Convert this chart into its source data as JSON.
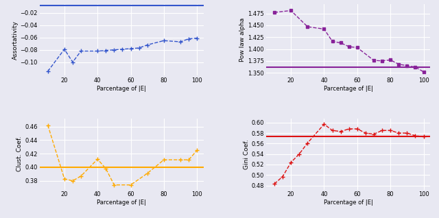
{
  "assort_x": [
    10,
    20,
    25,
    30,
    40,
    45,
    50,
    55,
    60,
    65,
    70,
    80,
    90,
    95,
    100
  ],
  "assort_y": [
    -0.115,
    -0.079,
    -0.1,
    -0.082,
    -0.082,
    -0.081,
    -0.08,
    -0.079,
    -0.078,
    -0.077,
    -0.072,
    -0.065,
    -0.067,
    -0.062,
    -0.061
  ],
  "assort_hline": -0.008,
  "assort_color": "#3355cc",
  "assort_ylim": [
    -0.122,
    -0.006
  ],
  "assort_yticks": [
    -0.1,
    -0.08,
    -0.06,
    -0.04,
    -0.02
  ],
  "assort_ylabel": "Assortativity",
  "power_x": [
    10,
    20,
    30,
    40,
    45,
    50,
    55,
    60,
    70,
    75,
    80,
    85,
    90,
    95,
    100
  ],
  "power_y": [
    1.477,
    1.481,
    1.447,
    1.442,
    1.416,
    1.413,
    1.405,
    1.403,
    1.376,
    1.375,
    1.377,
    1.368,
    1.365,
    1.362,
    1.352
  ],
  "power_hline": 1.362,
  "power_color": "#882299",
  "power_ylim": [
    1.344,
    1.494
  ],
  "power_yticks": [
    1.35,
    1.375,
    1.4,
    1.425,
    1.45,
    1.475
  ],
  "power_ylabel": "Pow law alpha",
  "clust_x": [
    10,
    20,
    25,
    30,
    40,
    45,
    50,
    60,
    70,
    80,
    90,
    95,
    100
  ],
  "clust_y": [
    0.462,
    0.383,
    0.38,
    0.387,
    0.412,
    0.398,
    0.374,
    0.374,
    0.391,
    0.411,
    0.411,
    0.411,
    0.425
  ],
  "clust_hline": 0.4,
  "clust_color": "#ffaa00",
  "clust_ylim": [
    0.367,
    0.472
  ],
  "clust_yticks": [
    0.38,
    0.4,
    0.42,
    0.44,
    0.46
  ],
  "clust_ylabel": "Clust. Coef.",
  "gini_x": [
    10,
    15,
    20,
    25,
    30,
    40,
    45,
    50,
    55,
    60,
    65,
    70,
    75,
    80,
    85,
    90,
    95,
    100
  ],
  "gini_y": [
    0.483,
    0.497,
    0.524,
    0.54,
    0.561,
    0.597,
    0.585,
    0.583,
    0.588,
    0.588,
    0.58,
    0.578,
    0.585,
    0.585,
    0.58,
    0.58,
    0.575,
    0.573
  ],
  "gini_hline": 0.573,
  "gini_color": "#dd1111",
  "gini_ylim": [
    0.472,
    0.608
  ],
  "gini_yticks": [
    0.48,
    0.5,
    0.52,
    0.54,
    0.56,
    0.58,
    0.6
  ],
  "gini_ylabel": "Gini Coef.",
  "xlabel": "Parcentage of |E|",
  "xticks": [
    20,
    40,
    60,
    80,
    100
  ],
  "bg_color": "#e8e8f2",
  "grid_color": "white"
}
